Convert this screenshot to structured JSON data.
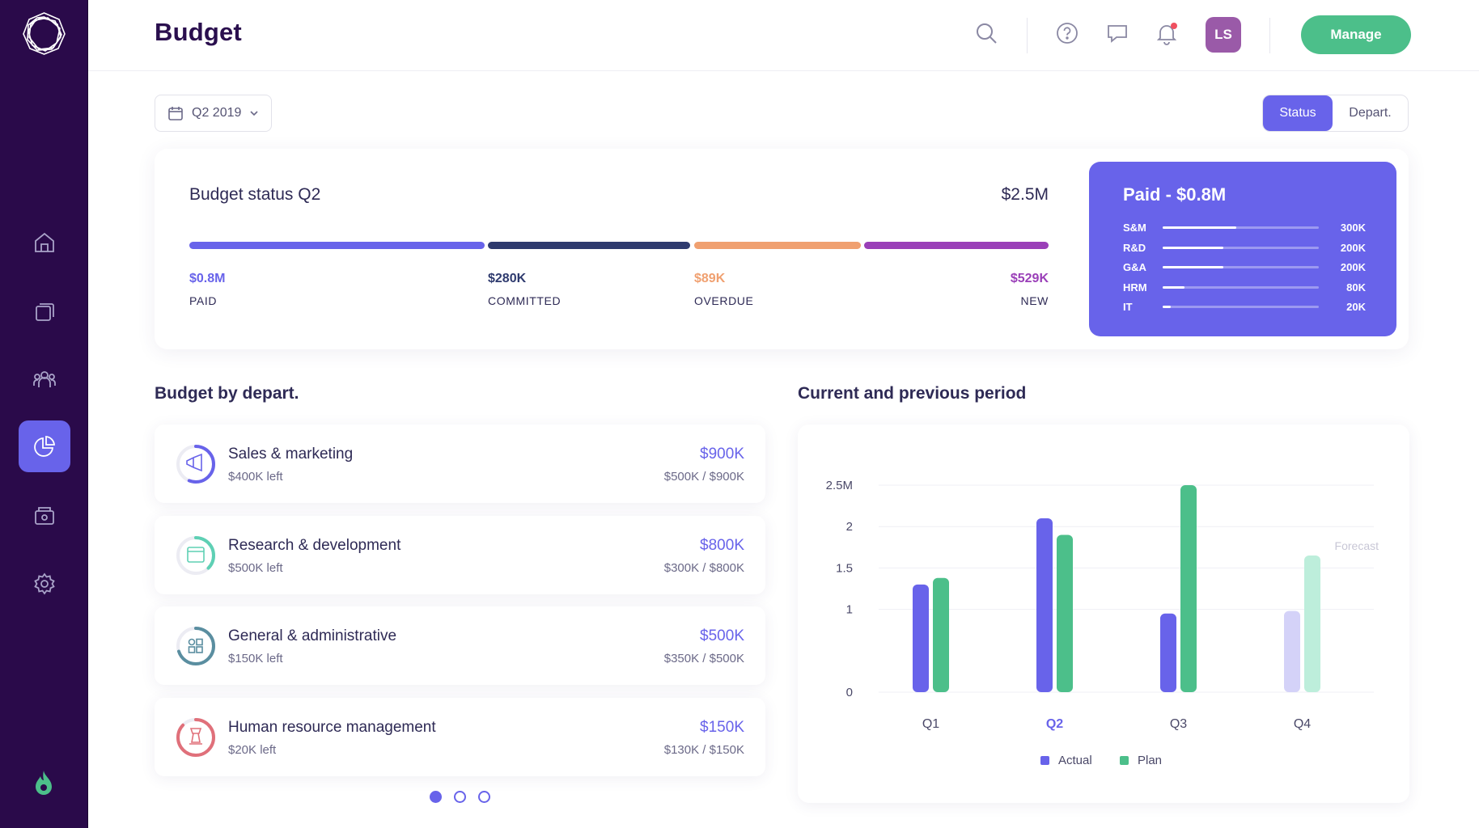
{
  "header": {
    "title": "Budget",
    "avatar_initials": "LS",
    "manage_label": "Manage",
    "icons": [
      "search-icon",
      "help-icon",
      "chat-icon",
      "bell-icon"
    ]
  },
  "sidebar": {
    "items": [
      {
        "name": "home",
        "icon": "home-icon",
        "active": false
      },
      {
        "name": "documents",
        "icon": "documents-icon",
        "active": false
      },
      {
        "name": "team",
        "icon": "team-icon",
        "active": false
      },
      {
        "name": "budget",
        "icon": "pie-chart-icon",
        "active": true
      },
      {
        "name": "wallet",
        "icon": "wallet-icon",
        "active": false
      },
      {
        "name": "settings",
        "icon": "gear-icon",
        "active": false
      }
    ]
  },
  "filters": {
    "period": "Q2 2019",
    "view_options": [
      "Status",
      "Depart."
    ],
    "active_view": "Status"
  },
  "status": {
    "title": "Budget status Q2",
    "total": "$2.5M",
    "segments": [
      {
        "value": "$0.8M",
        "label": "PAID",
        "amount": 0.8,
        "color": "#6863ea"
      },
      {
        "value": "$280K",
        "label": "COMMITTED",
        "amount": 0.28,
        "color": "#2e3a6e"
      },
      {
        "value": "$89K",
        "label": "OVERDUE",
        "amount": 0.089,
        "color": "#f0a070"
      },
      {
        "value": "$529K",
        "label": "NEW",
        "amount": 0.529,
        "color": "#9a3fb8"
      }
    ],
    "paid": {
      "title": "Paid - $0.8M",
      "rows": [
        {
          "label": "S&M",
          "amount": "300K",
          "fraction": 0.47
        },
        {
          "label": "R&D",
          "amount": "200K",
          "fraction": 0.39
        },
        {
          "label": "G&A",
          "amount": "200K",
          "fraction": 0.39
        },
        {
          "label": "HRM",
          "amount": "80K",
          "fraction": 0.14
        },
        {
          "label": "IT",
          "amount": "20K",
          "fraction": 0.05
        }
      ]
    }
  },
  "departments": {
    "title": "Budget by depart.",
    "items": [
      {
        "name": "Sales & marketing",
        "left": "$400K left",
        "amount": "$900K",
        "ratio": "$500K / $900K",
        "color": "#6863ea",
        "progress": 0.56,
        "icon": "megaphone-icon"
      },
      {
        "name": "Research & development",
        "left": "$500K left",
        "amount": "$800K",
        "ratio": "$300K / $800K",
        "color": "#5ed0b4",
        "progress": 0.375,
        "icon": "browser-icon"
      },
      {
        "name": "General & administrative",
        "left": "$150K left",
        "amount": "$500K",
        "ratio": "$350K / $500K",
        "color": "#5a8ea0",
        "progress": 0.7,
        "icon": "shapes-icon"
      },
      {
        "name": "Human resource management",
        "left": "$20K left",
        "amount": "$150K",
        "ratio": "$130K / $150K",
        "color": "#e0707a",
        "progress": 0.87,
        "icon": "chess-icon"
      }
    ],
    "pages": 3,
    "current_page": 1
  },
  "chart_data": {
    "type": "bar",
    "title": "Current and previous period",
    "categories": [
      "Q1",
      "Q2",
      "Q3",
      "Q4"
    ],
    "highlight_category": "Q2",
    "series": [
      {
        "name": "Actual",
        "color": "#6863ea",
        "values": [
          1.3,
          2.1,
          0.95,
          0.98
        ]
      },
      {
        "name": "Plan",
        "color": "#4cbf8a",
        "values": [
          1.38,
          1.9,
          2.5,
          1.65
        ]
      }
    ],
    "y_ticks": [
      "0",
      "1",
      "1.5",
      "2",
      "2.5M"
    ],
    "y_tick_values": [
      0,
      1,
      1.5,
      2,
      2.5
    ],
    "ylim": [
      0,
      2.5
    ],
    "annotation": "Forecast",
    "forecast_category": "Q4",
    "grid": true,
    "legend_position": "bottom"
  }
}
